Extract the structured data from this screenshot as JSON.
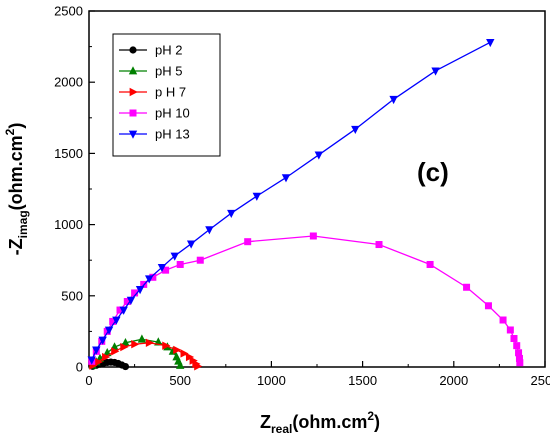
{
  "chart_data": {
    "type": "scatter",
    "annotation": "(c)",
    "xlabel": {
      "main": "Z",
      "sub": "real",
      "unit": "(ohm.cm",
      "sup": "2",
      "close": ")"
    },
    "ylabel": {
      "main": "-Z",
      "sub": "imag",
      "unit": "(ohm.cm",
      "sup": "2",
      "close": ")"
    },
    "xlim": [
      0,
      2500
    ],
    "ylim": [
      0,
      2500
    ],
    "xticks": [
      "0",
      "500",
      "1000",
      "1500",
      "2000",
      "2500"
    ],
    "yticks": [
      "0",
      "500",
      "1000",
      "1500",
      "2000",
      "2500"
    ],
    "grid": false,
    "legend_position": "top-left",
    "series": [
      {
        "name": "pH 2",
        "color": "#000000",
        "marker": "circle",
        "x": [
          20,
          40,
          60,
          80,
          100,
          120,
          140,
          160,
          180,
          200
        ],
        "y": [
          5,
          12,
          20,
          27,
          32,
          34,
          32,
          25,
          14,
          3
        ]
      },
      {
        "name": "pH 5",
        "color": "#008000",
        "marker": "triangle-up",
        "x": [
          20,
          40,
          60,
          100,
          140,
          200,
          290,
          380,
          430,
          460,
          480,
          490,
          500
        ],
        "y": [
          12,
          35,
          60,
          100,
          140,
          170,
          195,
          175,
          140,
          110,
          70,
          40,
          10
        ]
      },
      {
        "name": "p H 7",
        "color": "#ff0000",
        "marker": "triangle-right",
        "x": [
          20,
          50,
          90,
          140,
          190,
          250,
          330,
          420,
          480,
          520,
          550,
          570,
          585,
          595
        ],
        "y": [
          10,
          35,
          70,
          110,
          140,
          160,
          170,
          150,
          120,
          95,
          70,
          45,
          22,
          5
        ]
      },
      {
        "name": "pH 10",
        "color": "#ff00ff",
        "marker": "square",
        "x": [
          15,
          40,
          70,
          100,
          130,
          170,
          210,
          250,
          300,
          350,
          420,
          500,
          610,
          870,
          1230,
          1590,
          1870,
          2070,
          2190,
          2270,
          2310,
          2330,
          2345,
          2355,
          2360,
          2362
        ],
        "y": [
          40,
          110,
          180,
          250,
          320,
          400,
          460,
          520,
          580,
          630,
          680,
          720,
          750,
          880,
          920,
          860,
          720,
          560,
          430,
          330,
          260,
          200,
          150,
          100,
          60,
          30
        ]
      },
      {
        "name": "pH 13",
        "color": "#0000ff",
        "marker": "triangle-down",
        "x": [
          15,
          40,
          75,
          110,
          150,
          190,
          230,
          280,
          330,
          400,
          470,
          560,
          660,
          780,
          920,
          1080,
          1260,
          1460,
          1670,
          1900,
          2200
        ],
        "y": [
          50,
          120,
          190,
          260,
          330,
          400,
          470,
          545,
          620,
          700,
          780,
          865,
          965,
          1080,
          1200,
          1330,
          1490,
          1670,
          1880,
          2080,
          2280
        ]
      }
    ]
  }
}
